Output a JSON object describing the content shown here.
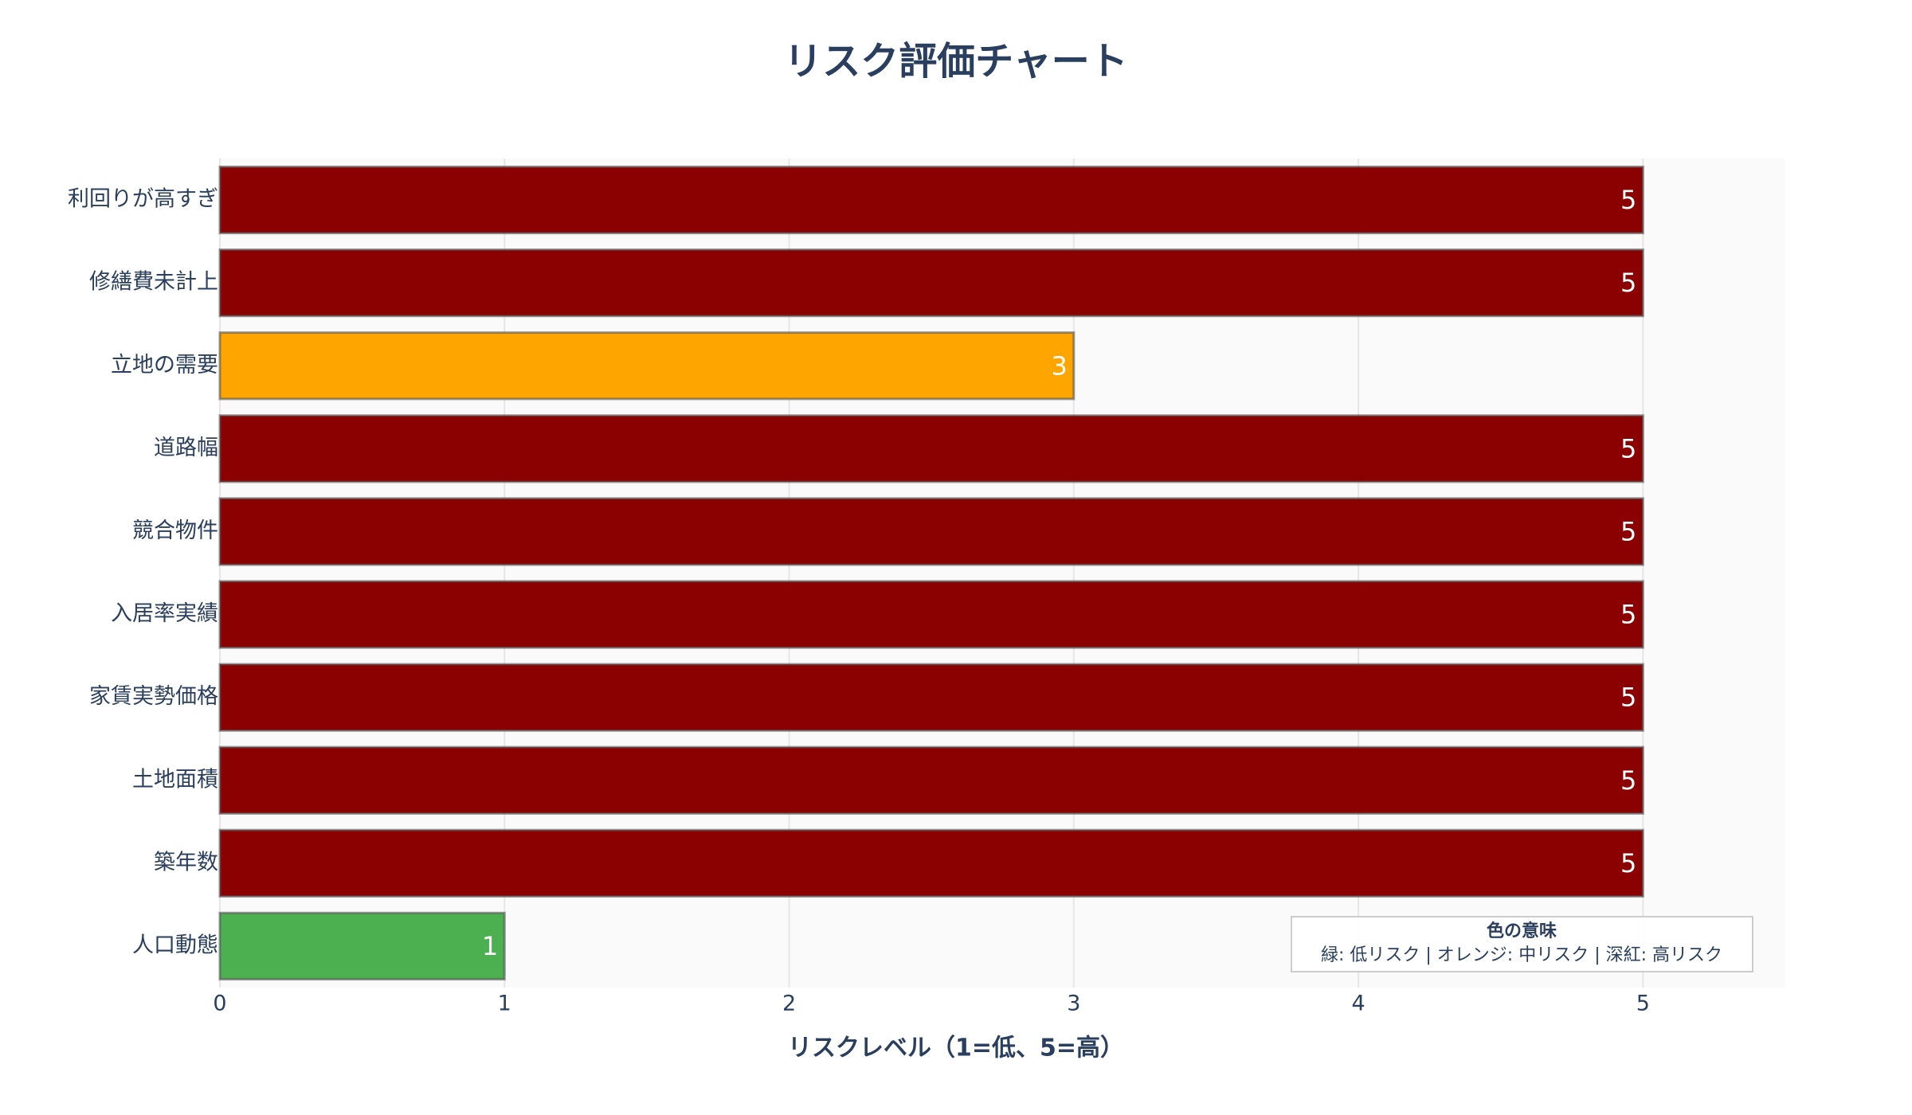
{
  "chart_data": {
    "type": "hbar",
    "title": "リスク評価チャート",
    "x_label": "リスクレベル（1=低、5=高）",
    "categories": [
      "利回りが高すぎ",
      "修繕費未計上",
      "立地の需要",
      "道路幅",
      "競合物件",
      "入居率実績",
      "家賃実勢価格",
      "土地面積",
      "築年数",
      "人口動態"
    ],
    "values": [
      5,
      5,
      3,
      5,
      5,
      5,
      5,
      5,
      5,
      1
    ],
    "colors": [
      "#8b0000",
      "#8b0000",
      "#ffa500",
      "#8b0000",
      "#8b0000",
      "#8b0000",
      "#8b0000",
      "#8b0000",
      "#8b0000",
      "#4caf50"
    ],
    "xlim": [
      0,
      5.5
    ],
    "xticks": [
      0,
      1,
      2,
      3,
      4,
      5
    ],
    "grid": true,
    "annotation": {
      "title": "色の意味",
      "text": "緑: 低リスク | オレンジ: 中リスク | 深紅: 高リスク"
    }
  }
}
